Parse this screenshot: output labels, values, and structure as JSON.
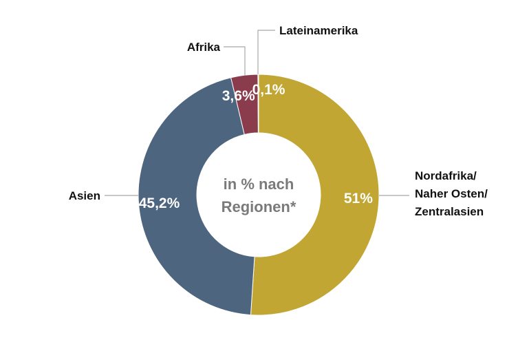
{
  "chart_data": {
    "type": "pie",
    "center_label": [
      "in % nach",
      "Regionen*"
    ],
    "slices": [
      {
        "label": [
          "Nordafrika/",
          "Naher Osten/",
          "Zentralasien"
        ],
        "value": 51,
        "value_label": "51%",
        "color": "#c2a634"
      },
      {
        "label": [
          "Asien"
        ],
        "value": 45.2,
        "value_label": "45,2%",
        "color": "#4e6580"
      },
      {
        "label": [
          "Afrika"
        ],
        "value": 3.6,
        "value_label": "3,6%",
        "color": "#8b3c4c"
      },
      {
        "label": [
          "Lateinamerika"
        ],
        "value": 0.1,
        "value_label": "0,1%",
        "color": "#d9cc7a"
      }
    ]
  }
}
